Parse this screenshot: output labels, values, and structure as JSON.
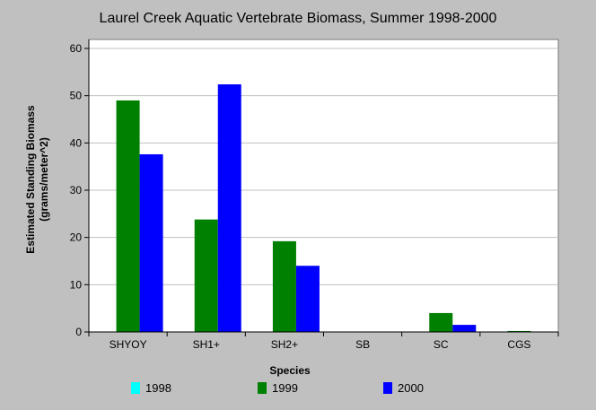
{
  "chart_data": {
    "type": "bar",
    "title": "Laurel Creek Aquatic Vertebrate Biomass, Summer 1998-2000",
    "xlabel": "Species",
    "ylabel_lines": [
      "Estimated Standing Biomass",
      "(grams/meter^2)"
    ],
    "categories": [
      "SHYOY",
      "SH1+",
      "SH2+",
      "SB",
      "SC",
      "CGS"
    ],
    "series": [
      {
        "name": "1998",
        "color": "#00ffff",
        "values": [
          0,
          0,
          0,
          0,
          0,
          0
        ]
      },
      {
        "name": "1999",
        "color": "#008000",
        "values": [
          49,
          23.8,
          19.2,
          0,
          4,
          0.2
        ]
      },
      {
        "name": "2000",
        "color": "#0000ff",
        "values": [
          37.6,
          52.4,
          14,
          0,
          1.5,
          0
        ]
      }
    ],
    "y_ticks": [
      "0",
      "10",
      "20",
      "30",
      "40",
      "50",
      "60"
    ],
    "ylim": [
      0,
      60
    ],
    "grid": true,
    "legend_position": "bottom"
  }
}
